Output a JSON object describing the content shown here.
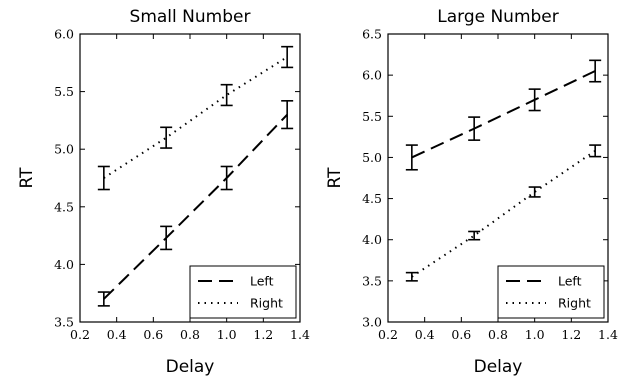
{
  "chart_data": [
    {
      "type": "line",
      "title": "Small Number",
      "xlabel": "Delay",
      "ylabel": "RT",
      "xlim": [
        0.2,
        1.4
      ],
      "ylim": [
        3.5,
        6.0
      ],
      "xticks": [
        "0.2",
        "0.4",
        "0.6",
        "0.8",
        "1.0",
        "1.2",
        "1.4"
      ],
      "yticks": [
        "3.5",
        "4.0",
        "4.5",
        "5.0",
        "5.5",
        "6.0"
      ],
      "grid": false,
      "legend_position": "bottom-right",
      "series": [
        {
          "name": "Left",
          "style": "dashed",
          "x": [
            0.33,
            0.67,
            1.0,
            1.33
          ],
          "y": [
            3.7,
            4.23,
            4.75,
            5.3
          ],
          "err": [
            0.06,
            0.1,
            0.1,
            0.12
          ]
        },
        {
          "name": "Right",
          "style": "dotted",
          "x": [
            0.33,
            0.67,
            1.0,
            1.33
          ],
          "y": [
            4.75,
            5.1,
            5.47,
            5.8
          ],
          "err": [
            0.1,
            0.09,
            0.09,
            0.09
          ]
        }
      ]
    },
    {
      "type": "line",
      "title": "Large Number",
      "xlabel": "Delay",
      "ylabel": "RT",
      "xlim": [
        0.2,
        1.4
      ],
      "ylim": [
        3.0,
        6.5
      ],
      "xticks": [
        "0.2",
        "0.4",
        "0.6",
        "0.8",
        "1.0",
        "1.2",
        "1.4"
      ],
      "yticks": [
        "3.0",
        "3.5",
        "4.0",
        "4.5",
        "5.0",
        "5.5",
        "6.0",
        "6.5"
      ],
      "grid": false,
      "legend_position": "bottom-right",
      "series": [
        {
          "name": "Left",
          "style": "dashed",
          "x": [
            0.33,
            0.67,
            1.0,
            1.33
          ],
          "y": [
            5.0,
            5.35,
            5.7,
            6.05
          ],
          "err": [
            0.15,
            0.14,
            0.13,
            0.13
          ]
        },
        {
          "name": "Right",
          "style": "dotted",
          "x": [
            0.33,
            0.67,
            1.0,
            1.33
          ],
          "y": [
            3.55,
            4.05,
            4.58,
            5.08
          ],
          "err": [
            0.05,
            0.05,
            0.06,
            0.07
          ]
        }
      ]
    }
  ]
}
